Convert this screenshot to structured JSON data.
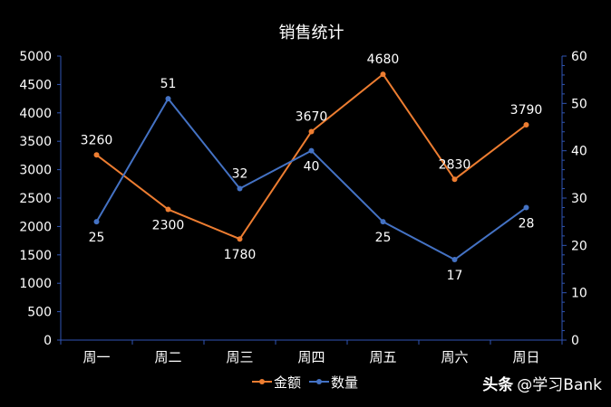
{
  "chart_data": {
    "type": "line",
    "title": "销售统计",
    "categories": [
      "周一",
      "周二",
      "周三",
      "周四",
      "周五",
      "周六",
      "周日"
    ],
    "series": [
      {
        "name": "金额",
        "axis": "left",
        "color": "#ED7D31",
        "values": [
          3260,
          2300,
          1780,
          3670,
          4680,
          2830,
          3790
        ]
      },
      {
        "name": "数量",
        "axis": "right",
        "color": "#4472C4",
        "values": [
          25,
          51,
          32,
          40,
          25,
          17,
          28
        ]
      }
    ],
    "ylim_left": [
      0,
      5000
    ],
    "yticks_left": [
      0,
      500,
      1000,
      1500,
      2000,
      2500,
      3000,
      3500,
      4000,
      4500,
      5000
    ],
    "ylim_right": [
      0,
      60
    ],
    "yticks_right": [
      0,
      10,
      20,
      30,
      40,
      50,
      60
    ],
    "grid": false,
    "data_labels": true,
    "legend_position": "bottom"
  },
  "watermark": {
    "brand": "头条",
    "handle": "@学习Bank"
  },
  "colors": {
    "background": "#000000",
    "text": "#ffffff",
    "axis": "#2f55b5"
  }
}
